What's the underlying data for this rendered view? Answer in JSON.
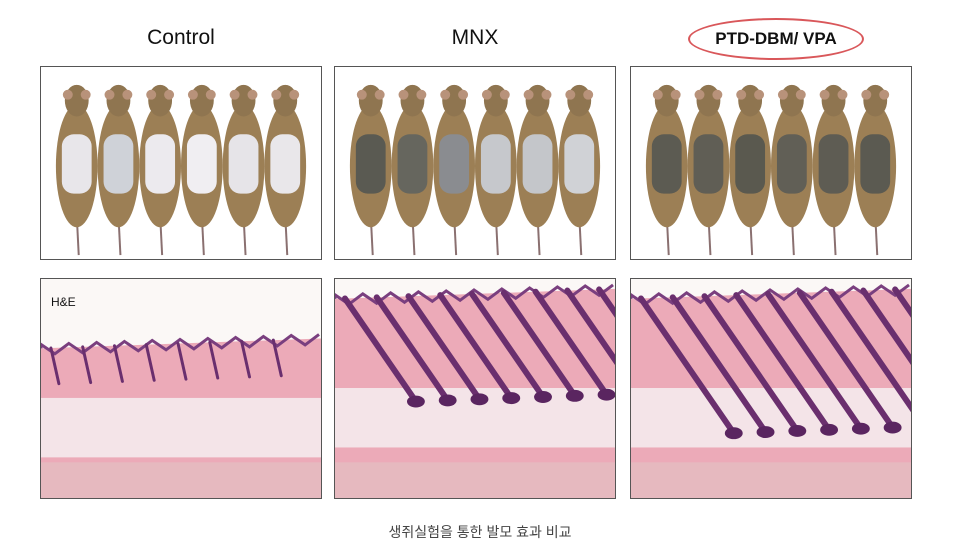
{
  "groups": [
    {
      "label": "Control",
      "highlighted": false,
      "shaved_patch": "bare-white"
    },
    {
      "label": "MNX",
      "highlighted": false,
      "shaved_patch": "partial-regrowth"
    },
    {
      "label": "PTD-DBM/ VPA",
      "highlighted": true,
      "shaved_patch": "full-regrowth"
    }
  ],
  "stain_label": "H&E",
  "caption": "생쥐실험을 통한 발모 효과 비교",
  "colors": {
    "highlight_ellipse": "#d9575a",
    "fur": "#9c7f55",
    "tissue": "#ecaab8",
    "follicle": "#6a2f6e"
  }
}
